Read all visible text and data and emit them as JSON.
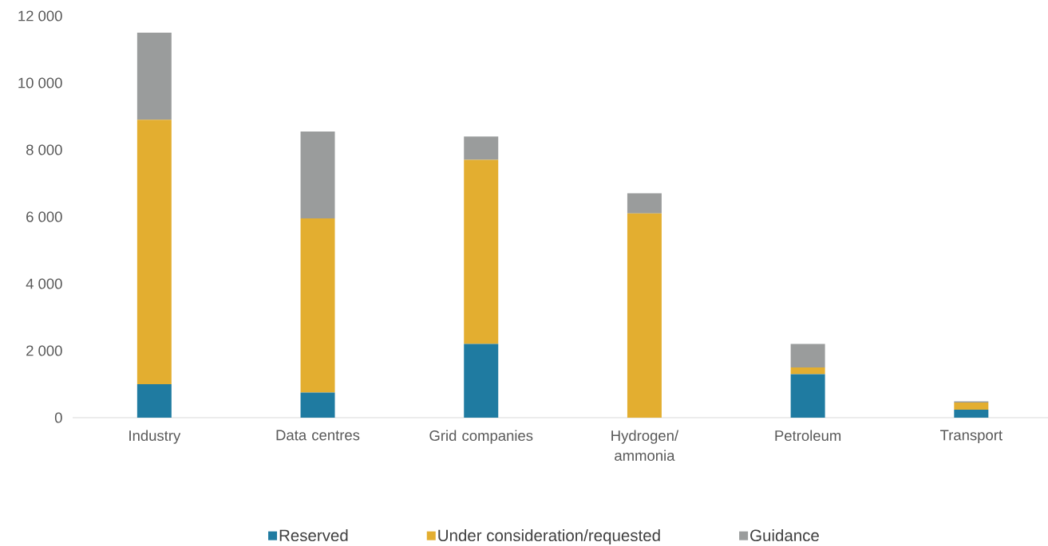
{
  "chart_data": {
    "type": "bar",
    "stacked": true,
    "categories": [
      "Industry",
      "Data centres",
      "Grid companies",
      "Hydrogen/ ammonia",
      "Petroleum",
      "Transport"
    ],
    "series": [
      {
        "name": "Reserved",
        "color": "#1f7ba1",
        "values": [
          1000,
          750,
          2200,
          0,
          1300,
          240
        ]
      },
      {
        "name": "Under consideration/requested",
        "color": "#e3ae30",
        "values": [
          7900,
          5200,
          5500,
          6100,
          200,
          210
        ]
      },
      {
        "name": "Guidance",
        "color": "#9a9c9c",
        "values": [
          2600,
          2600,
          700,
          600,
          700,
          40
        ]
      }
    ],
    "ylim": [
      0,
      12000
    ],
    "yticks": [
      0,
      {
        "value": 2000,
        "label": "2 000"
      },
      {
        "value": 4000,
        "label": "4 000"
      },
      {
        "value": 6000,
        "label": "6 000"
      },
      {
        "value": 8000,
        "label": "8 000"
      },
      {
        "value": 10000,
        "label": "10 000"
      },
      {
        "value": 12000,
        "label": "12 000"
      }
    ],
    "legend": "bottom"
  }
}
